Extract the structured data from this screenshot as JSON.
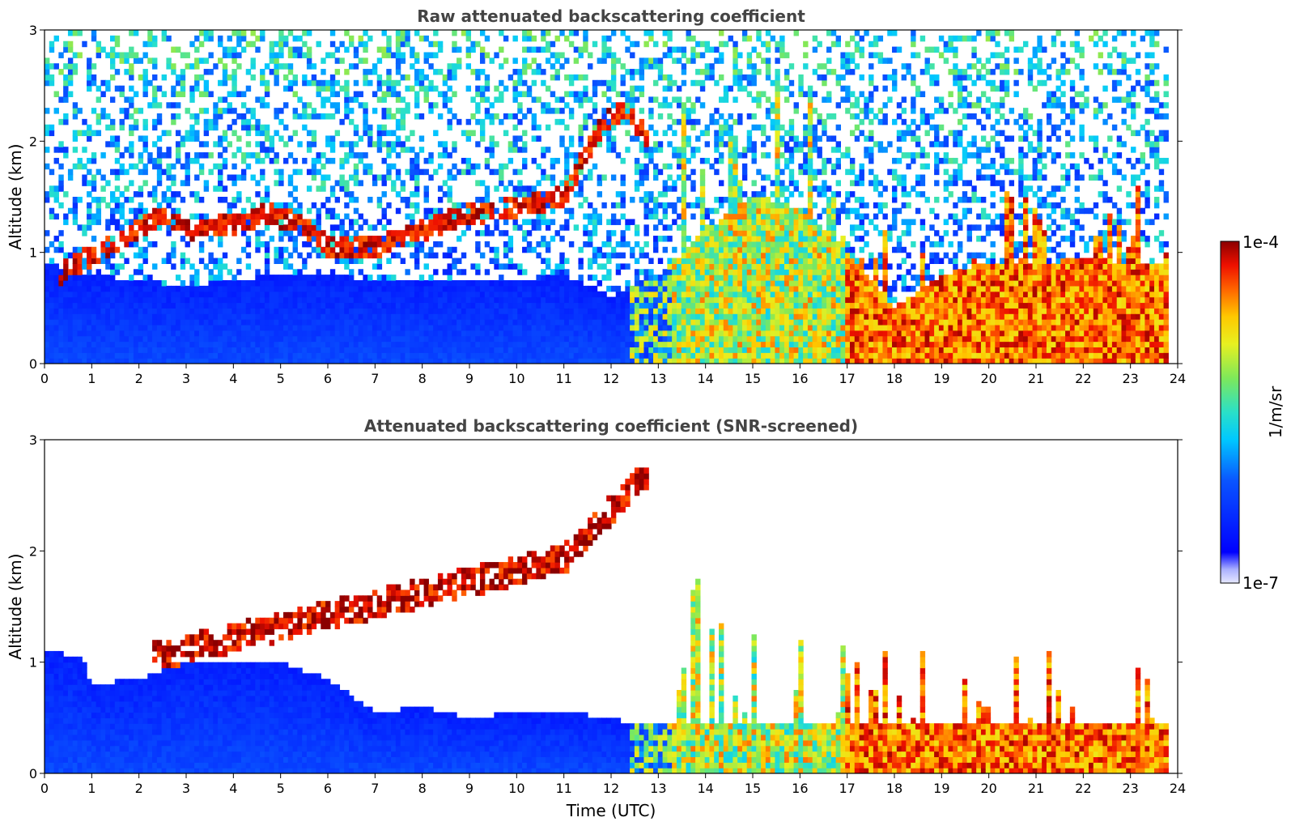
{
  "chart_data": [
    {
      "type": "heatmap",
      "title": "Raw attenuated backscattering coefficient",
      "xlabel": "",
      "ylabel": "Altitude (km)",
      "xlim": [
        0,
        24
      ],
      "ylim": [
        0,
        3
      ],
      "xticks": [
        "0",
        "1",
        "2",
        "3",
        "4",
        "5",
        "6",
        "7",
        "8",
        "9",
        "10",
        "11",
        "12",
        "13",
        "14",
        "15",
        "16",
        "17",
        "18",
        "19",
        "20",
        "21",
        "22",
        "23",
        "24"
      ],
      "yticks": [
        "0",
        "1",
        "2",
        "3"
      ],
      "data_end_time": 23.8,
      "layers": [
        {
          "feature": "aerosol layer top (km)",
          "time": [
            0,
            1,
            2,
            3,
            4,
            5,
            6,
            7,
            8,
            9,
            10,
            11,
            12,
            13,
            14,
            15,
            16,
            17,
            18,
            19,
            20,
            21,
            22,
            23,
            23.8
          ],
          "height": [
            0.9,
            0.8,
            0.75,
            0.7,
            0.75,
            0.8,
            0.8,
            0.75,
            0.75,
            0.75,
            0.75,
            0.8,
            0.6,
            0.8,
            1.2,
            1.5,
            1.4,
            1.0,
            0.5,
            0.8,
            0.9,
            0.9,
            0.95,
            0.9,
            0.9
          ]
        },
        {
          "feature": "elevated layer (km)",
          "time": [
            0.3,
            2.5,
            3,
            4,
            4.7,
            5.5,
            6,
            7,
            8,
            9,
            10,
            11,
            11.8,
            12.3,
            12.8
          ],
          "height": [
            0.8,
            1.35,
            1.2,
            1.25,
            1.35,
            1.25,
            1.05,
            1.05,
            1.2,
            1.35,
            1.4,
            1.5,
            2.15,
            2.3,
            2.0
          ]
        }
      ],
      "colorbar": {
        "label": "1/m/sr",
        "min_label": "1e-7",
        "max_label": "1e-4",
        "scale": "log"
      }
    },
    {
      "type": "heatmap",
      "title": "Attenuated backscattering coefficient (SNR-screened)",
      "xlabel": "Time (UTC)",
      "ylabel": "Altitude (km)",
      "xlim": [
        0,
        24
      ],
      "ylim": [
        0,
        3
      ],
      "xticks": [
        "0",
        "1",
        "2",
        "3",
        "4",
        "5",
        "6",
        "7",
        "8",
        "9",
        "10",
        "11",
        "12",
        "13",
        "14",
        "15",
        "16",
        "17",
        "18",
        "19",
        "20",
        "21",
        "22",
        "23",
        "24"
      ],
      "yticks": [
        "0",
        "1",
        "2",
        "3"
      ],
      "data_end_time": 23.8,
      "layers": [
        {
          "feature": "screened aerosol top (km)",
          "time": [
            0,
            0.8,
            1,
            2,
            3,
            4,
            5,
            6,
            7,
            8,
            9,
            10,
            11,
            12,
            12.4
          ],
          "height": [
            1.1,
            1.05,
            0.8,
            0.85,
            1.0,
            1.0,
            1.0,
            0.85,
            0.55,
            0.6,
            0.5,
            0.55,
            0.55,
            0.5,
            0.45
          ]
        }
      ],
      "colorbar": {
        "label": "1/m/sr",
        "min_label": "1e-7",
        "max_label": "1e-4",
        "scale": "log"
      }
    }
  ],
  "colors": {
    "low": "#0a22f0",
    "mid": "#2ad0e6",
    "high": "#f5e21a",
    "peak": "#8b0000",
    "title": "#444444"
  }
}
